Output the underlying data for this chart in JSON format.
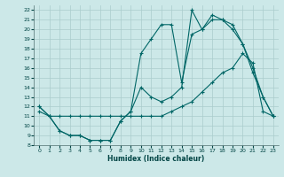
{
  "xlabel": "Humidex (Indice chaleur)",
  "background_color": "#cce8e8",
  "grid_color": "#aacccc",
  "line_color": "#006666",
  "xlim": [
    -0.5,
    23.5
  ],
  "ylim": [
    8,
    22.5
  ],
  "xticks": [
    0,
    1,
    2,
    3,
    4,
    5,
    6,
    7,
    8,
    9,
    10,
    11,
    12,
    13,
    14,
    15,
    16,
    17,
    18,
    19,
    20,
    21,
    22,
    23
  ],
  "yticks": [
    8,
    9,
    10,
    11,
    12,
    13,
    14,
    15,
    16,
    17,
    18,
    19,
    20,
    21,
    22
  ],
  "line1_x": [
    0,
    1,
    2,
    3,
    4,
    5,
    6,
    7,
    8,
    9,
    10,
    11,
    12,
    13,
    14,
    15,
    16,
    17,
    18,
    19,
    20,
    21,
    22,
    23
  ],
  "line1_y": [
    12.0,
    11.0,
    9.5,
    9.0,
    9.0,
    8.5,
    8.5,
    8.5,
    10.5,
    11.5,
    14.0,
    13.0,
    12.5,
    13.0,
    14.0,
    22.0,
    20.0,
    21.5,
    21.0,
    20.0,
    18.5,
    16.0,
    13.0,
    11.0
  ],
  "line2_x": [
    0,
    1,
    2,
    3,
    4,
    5,
    6,
    7,
    8,
    9,
    10,
    11,
    12,
    13,
    14,
    15,
    16,
    17,
    18,
    19,
    20,
    21,
    22,
    23
  ],
  "line2_y": [
    12.0,
    11.0,
    9.5,
    9.0,
    9.0,
    8.5,
    8.5,
    8.5,
    10.5,
    11.5,
    17.5,
    19.0,
    20.5,
    20.5,
    14.5,
    19.5,
    20.0,
    21.0,
    21.0,
    20.5,
    18.5,
    15.5,
    13.0,
    11.0
  ],
  "line3_x": [
    0,
    1,
    2,
    3,
    4,
    5,
    6,
    7,
    8,
    9,
    10,
    11,
    12,
    13,
    14,
    15,
    16,
    17,
    18,
    19,
    20,
    21,
    22,
    23
  ],
  "line3_y": [
    11.5,
    11.0,
    11.0,
    11.0,
    11.0,
    11.0,
    11.0,
    11.0,
    11.0,
    11.0,
    11.0,
    11.0,
    11.0,
    11.5,
    12.0,
    12.5,
    13.5,
    14.5,
    15.5,
    16.0,
    17.5,
    16.5,
    11.5,
    11.0
  ]
}
